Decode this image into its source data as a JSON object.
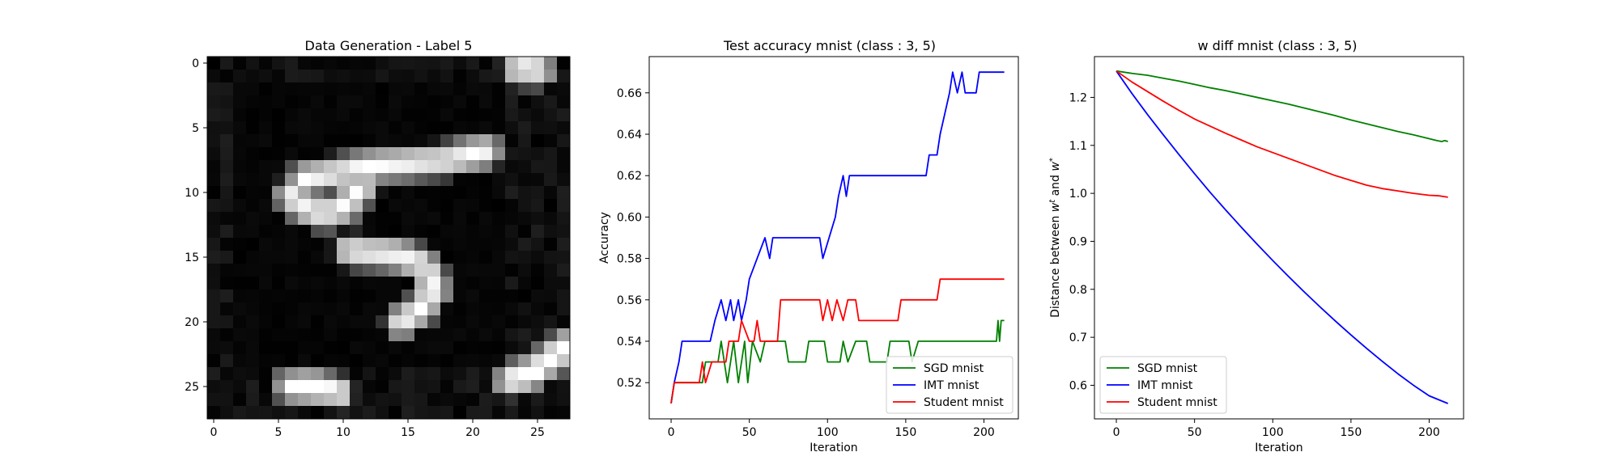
{
  "image_panel": {
    "title": "Data Generation - Label 5",
    "x_ticks": [
      "0",
      "5",
      "10",
      "15",
      "20",
      "25"
    ],
    "y_ticks": [
      "0",
      "5",
      "10",
      "15",
      "20",
      "25"
    ],
    "rows": 28,
    "cols": 28
  },
  "chart_data": [
    {
      "type": "line",
      "title": "Test accuracy mnist (class : 3, 5)",
      "xlabel": "Iteration",
      "ylabel": "Accuracy",
      "xlim": [
        -14,
        222
      ],
      "ylim": [
        0.5025,
        0.6775
      ],
      "x_ticks": [
        0,
        50,
        100,
        150,
        200
      ],
      "y_ticks": [
        0.52,
        0.54,
        0.56,
        0.58,
        0.6,
        0.62,
        0.64,
        0.66
      ],
      "legend_position": "bottom-right",
      "series": [
        {
          "name": "SGD mnist",
          "color": "#008000",
          "points": [
            [
              0,
              0.51
            ],
            [
              2,
              0.52
            ],
            [
              20,
              0.52
            ],
            [
              22,
              0.53
            ],
            [
              30,
              0.53
            ],
            [
              32,
              0.54
            ],
            [
              36,
              0.52
            ],
            [
              40,
              0.54
            ],
            [
              43,
              0.52
            ],
            [
              47,
              0.54
            ],
            [
              49,
              0.52
            ],
            [
              52,
              0.54
            ],
            [
              57,
              0.53
            ],
            [
              60,
              0.54
            ],
            [
              73,
              0.54
            ],
            [
              75,
              0.53
            ],
            [
              86,
              0.53
            ],
            [
              88,
              0.54
            ],
            [
              98,
              0.54
            ],
            [
              100,
              0.53
            ],
            [
              108,
              0.53
            ],
            [
              110,
              0.54
            ],
            [
              113,
              0.53
            ],
            [
              118,
              0.54
            ],
            [
              125,
              0.54
            ],
            [
              127,
              0.53
            ],
            [
              138,
              0.53
            ],
            [
              140,
              0.54
            ],
            [
              152,
              0.54
            ],
            [
              154,
              0.53
            ],
            [
              158,
              0.54
            ],
            [
              208,
              0.54
            ],
            [
              209,
              0.55
            ],
            [
              210,
              0.54
            ],
            [
              211,
              0.55
            ],
            [
              213,
              0.55
            ]
          ]
        },
        {
          "name": "IMT mnist",
          "color": "#0000ff",
          "points": [
            [
              0,
              0.51
            ],
            [
              2,
              0.52
            ],
            [
              5,
              0.53
            ],
            [
              7,
              0.54
            ],
            [
              25,
              0.54
            ],
            [
              28,
              0.55
            ],
            [
              32,
              0.56
            ],
            [
              35,
              0.55
            ],
            [
              38,
              0.56
            ],
            [
              40,
              0.55
            ],
            [
              43,
              0.56
            ],
            [
              45,
              0.55
            ],
            [
              48,
              0.56
            ],
            [
              50,
              0.57
            ],
            [
              55,
              0.58
            ],
            [
              60,
              0.59
            ],
            [
              63,
              0.58
            ],
            [
              65,
              0.59
            ],
            [
              95,
              0.59
            ],
            [
              97,
              0.58
            ],
            [
              101,
              0.59
            ],
            [
              105,
              0.6
            ],
            [
              107,
              0.61
            ],
            [
              110,
              0.62
            ],
            [
              112,
              0.61
            ],
            [
              114,
              0.62
            ],
            [
              163,
              0.62
            ],
            [
              165,
              0.63
            ],
            [
              170,
              0.63
            ],
            [
              172,
              0.64
            ],
            [
              175,
              0.65
            ],
            [
              178,
              0.66
            ],
            [
              180,
              0.67
            ],
            [
              183,
              0.66
            ],
            [
              186,
              0.67
            ],
            [
              188,
              0.66
            ],
            [
              195,
              0.66
            ],
            [
              197,
              0.67
            ],
            [
              213,
              0.67
            ]
          ]
        },
        {
          "name": "Student mnist",
          "color": "#ff0000",
          "points": [
            [
              0,
              0.51
            ],
            [
              2,
              0.52
            ],
            [
              18,
              0.52
            ],
            [
              20,
              0.53
            ],
            [
              22,
              0.52
            ],
            [
              26,
              0.53
            ],
            [
              35,
              0.53
            ],
            [
              37,
              0.54
            ],
            [
              43,
              0.54
            ],
            [
              45,
              0.55
            ],
            [
              50,
              0.54
            ],
            [
              53,
              0.54
            ],
            [
              55,
              0.55
            ],
            [
              57,
              0.54
            ],
            [
              68,
              0.54
            ],
            [
              70,
              0.56
            ],
            [
              95,
              0.56
            ],
            [
              97,
              0.55
            ],
            [
              100,
              0.56
            ],
            [
              103,
              0.55
            ],
            [
              106,
              0.56
            ],
            [
              110,
              0.55
            ],
            [
              113,
              0.56
            ],
            [
              118,
              0.56
            ],
            [
              120,
              0.55
            ],
            [
              145,
              0.55
            ],
            [
              147,
              0.56
            ],
            [
              170,
              0.56
            ],
            [
              172,
              0.57
            ],
            [
              213,
              0.57
            ]
          ]
        }
      ]
    },
    {
      "type": "line",
      "title": "w diff mnist (class : 3, 5)",
      "xlabel": "Iteration",
      "ylabel": "Distance between w^t and w^*",
      "xlim": [
        -14,
        222
      ],
      "ylim": [
        0.53,
        1.285
      ],
      "x_ticks": [
        0,
        50,
        100,
        150,
        200
      ],
      "y_ticks": [
        0.6,
        0.7,
        0.8,
        0.9,
        1.0,
        1.1,
        1.2
      ],
      "legend_position": "bottom-left",
      "series": [
        {
          "name": "SGD mnist",
          "color": "#008000",
          "points": [
            [
              0,
              1.255
            ],
            [
              10,
              1.25
            ],
            [
              20,
              1.246
            ],
            [
              30,
              1.24
            ],
            [
              40,
              1.234
            ],
            [
              50,
              1.227
            ],
            [
              60,
              1.22
            ],
            [
              70,
              1.214
            ],
            [
              80,
              1.207
            ],
            [
              90,
              1.2
            ],
            [
              100,
              1.193
            ],
            [
              110,
              1.186
            ],
            [
              120,
              1.178
            ],
            [
              130,
              1.17
            ],
            [
              140,
              1.162
            ],
            [
              150,
              1.153
            ],
            [
              160,
              1.145
            ],
            [
              170,
              1.137
            ],
            [
              180,
              1.129
            ],
            [
              190,
              1.122
            ],
            [
              200,
              1.114
            ],
            [
              205,
              1.11
            ],
            [
              208,
              1.108
            ],
            [
              210,
              1.11
            ],
            [
              212,
              1.108
            ]
          ]
        },
        {
          "name": "IMT mnist",
          "color": "#0000ff",
          "points": [
            [
              0,
              1.255
            ],
            [
              10,
              1.208
            ],
            [
              20,
              1.164
            ],
            [
              30,
              1.122
            ],
            [
              40,
              1.081
            ],
            [
              50,
              1.041
            ],
            [
              60,
              1.002
            ],
            [
              70,
              0.965
            ],
            [
              80,
              0.929
            ],
            [
              90,
              0.894
            ],
            [
              100,
              0.86
            ],
            [
              110,
              0.827
            ],
            [
              120,
              0.795
            ],
            [
              130,
              0.764
            ],
            [
              140,
              0.734
            ],
            [
              150,
              0.705
            ],
            [
              160,
              0.677
            ],
            [
              170,
              0.65
            ],
            [
              180,
              0.624
            ],
            [
              190,
              0.6
            ],
            [
              200,
              0.578
            ],
            [
              206,
              0.57
            ],
            [
              212,
              0.562
            ]
          ]
        },
        {
          "name": "Student mnist",
          "color": "#ff0000",
          "points": [
            [
              0,
              1.255
            ],
            [
              10,
              1.232
            ],
            [
              20,
              1.212
            ],
            [
              30,
              1.192
            ],
            [
              40,
              1.173
            ],
            [
              50,
              1.155
            ],
            [
              60,
              1.14
            ],
            [
              70,
              1.125
            ],
            [
              80,
              1.111
            ],
            [
              90,
              1.097
            ],
            [
              100,
              1.085
            ],
            [
              110,
              1.073
            ],
            [
              120,
              1.061
            ],
            [
              130,
              1.049
            ],
            [
              140,
              1.037
            ],
            [
              150,
              1.027
            ],
            [
              160,
              1.017
            ],
            [
              170,
              1.01
            ],
            [
              180,
              1.005
            ],
            [
              190,
              1.0
            ],
            [
              200,
              0.996
            ],
            [
              206,
              0.995
            ],
            [
              212,
              0.992
            ]
          ]
        }
      ]
    }
  ]
}
